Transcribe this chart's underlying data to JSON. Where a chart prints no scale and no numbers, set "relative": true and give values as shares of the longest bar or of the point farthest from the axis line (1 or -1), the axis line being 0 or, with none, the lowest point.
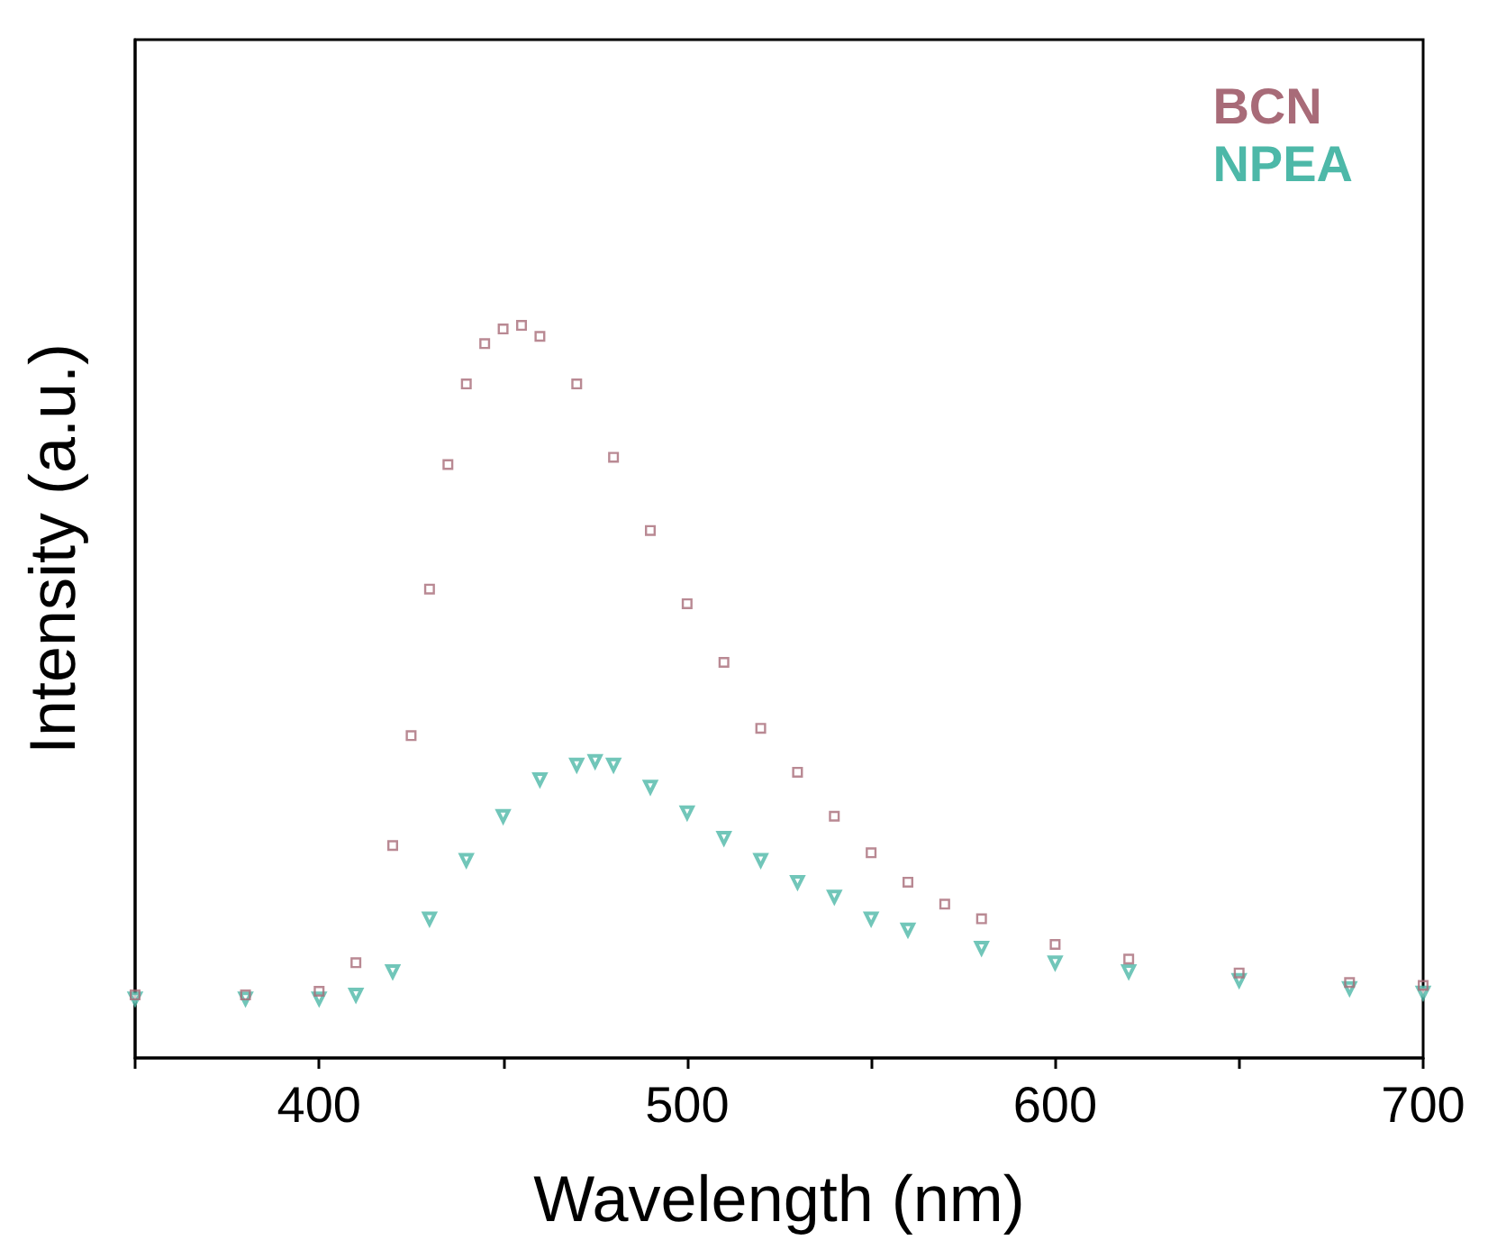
{
  "chart_data": {
    "type": "scatter",
    "xlabel": "Wavelength (nm)",
    "ylabel": "Intensity (a.u.)",
    "relative": true,
    "xlim": [
      350,
      700
    ],
    "xticks": [
      {
        "value": 350,
        "label": null
      },
      400,
      {
        "value": 450,
        "label": null
      },
      500,
      {
        "value": 550,
        "label": null
      },
      600,
      {
        "value": 650,
        "label": null
      },
      700
    ],
    "tick_labels": "x",
    "legend": "top right",
    "series": [
      {
        "name": "BCN",
        "color": "#a86b78",
        "marker": "square",
        "x": [
          350,
          380,
          400,
          410,
          420,
          425,
          430,
          435,
          440,
          445,
          450,
          455,
          460,
          470,
          480,
          490,
          500,
          510,
          520,
          530,
          540,
          550,
          560,
          570,
          580,
          600,
          620,
          650,
          680,
          700
        ],
        "values": [
          0.086,
          0.086,
          0.091,
          0.13,
          0.29,
          0.44,
          0.64,
          0.81,
          0.92,
          0.975,
          0.995,
          1.0,
          0.985,
          0.92,
          0.82,
          0.72,
          0.62,
          0.54,
          0.45,
          0.39,
          0.33,
          0.28,
          0.24,
          0.21,
          0.19,
          0.155,
          0.135,
          0.116,
          0.103,
          0.099
        ]
      },
      {
        "name": "NPEA",
        "color": "#4db8a8",
        "marker": "triangle",
        "x": [
          350,
          380,
          400,
          410,
          420,
          430,
          440,
          450,
          460,
          470,
          475,
          480,
          490,
          500,
          510,
          520,
          530,
          540,
          550,
          560,
          580,
          600,
          620,
          650,
          680,
          700
        ],
        "values": [
          0.081,
          0.081,
          0.081,
          0.086,
          0.118,
          0.19,
          0.27,
          0.33,
          0.38,
          0.4,
          0.405,
          0.4,
          0.37,
          0.335,
          0.3,
          0.27,
          0.24,
          0.22,
          0.19,
          0.175,
          0.15,
          0.13,
          0.118,
          0.106,
          0.095,
          0.089
        ]
      }
    ]
  }
}
